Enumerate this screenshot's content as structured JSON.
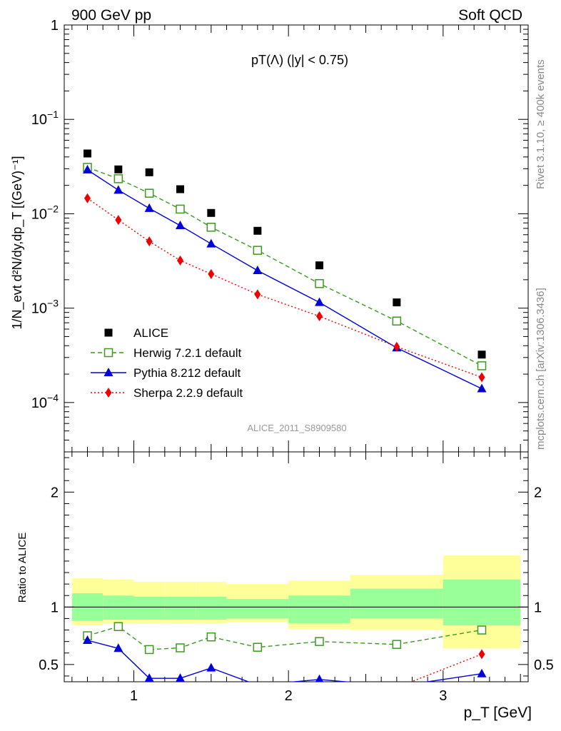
{
  "header": {
    "left": "900 GeV pp",
    "right": "Soft QCD",
    "plot_title": "pT(Λ) (|y| < 0.75)",
    "analysis_id": "ALICE_2011_S8909580"
  },
  "side_text": {
    "rivet": "Rivet 3.1.10, ≥ 400k events",
    "mcplots": "mcplots.cern.ch [arXiv:1306.3436]"
  },
  "chart_data": [
    {
      "type": "scatter",
      "panel": "main",
      "ylabel": "1/N_evt d²N/dy,dp_T [(GeV)⁻¹]",
      "yscale": "log",
      "ylim": [
        3e-05,
        1
      ],
      "xlim": [
        0.55,
        3.55
      ],
      "yticks": [
        "1",
        "10⁻¹",
        "10⁻²",
        "10⁻³",
        "10⁻⁴"
      ],
      "legend_position": "lower-left",
      "x": [
        0.7,
        0.9,
        1.1,
        1.3,
        1.5,
        1.8,
        2.2,
        2.7,
        3.25
      ],
      "series": [
        {
          "name": "ALICE",
          "style": "data",
          "color": "#000000",
          "values": [
            0.0435,
            0.0295,
            0.0275,
            0.0182,
            0.0102,
            0.0066,
            0.00284,
            0.00115,
            0.000322
          ]
        },
        {
          "name": "Herwig 7.2.1 default",
          "style": "dashed-open-square",
          "color": "#3a9a1e",
          "values": [
            0.031,
            0.0235,
            0.0165,
            0.0112,
            0.0072,
            0.0041,
            0.00182,
            0.00073,
            0.000245
          ]
        },
        {
          "name": "Pythia 8.212 default",
          "style": "solid-triangle",
          "color": "#0000dd",
          "values": [
            0.0292,
            0.0178,
            0.0114,
            0.0075,
            0.0048,
            0.0025,
            0.00115,
            0.00038,
            0.00014
          ]
        },
        {
          "name": "Sherpa 2.2.9 default",
          "style": "dotted-diamond",
          "color": "#ee0000",
          "values": [
            0.0146,
            0.0086,
            0.0051,
            0.0032,
            0.0023,
            0.0014,
            0.00082,
            0.00039,
            0.000185
          ]
        }
      ]
    },
    {
      "type": "line",
      "panel": "ratio",
      "ylabel": "Ratio to ALICE",
      "xlabel": "p_T [GeV]",
      "xlim": [
        0.55,
        3.55
      ],
      "ylim": [
        0.35,
        2.35
      ],
      "xticks": [
        "1",
        "2",
        "3"
      ],
      "yticks": [
        "0.5",
        "1",
        "2"
      ],
      "bin_edges": [
        0.6,
        0.8,
        1.0,
        1.2,
        1.4,
        1.6,
        2.0,
        2.4,
        3.0,
        3.5
      ],
      "band_inner": [
        [
          0.88,
          1.12
        ],
        [
          0.89,
          1.1
        ],
        [
          0.89,
          1.09
        ],
        [
          0.89,
          1.09
        ],
        [
          0.89,
          1.09
        ],
        [
          0.9,
          1.07
        ],
        [
          0.86,
          1.1
        ],
        [
          0.9,
          1.16
        ],
        [
          0.84,
          1.24
        ]
      ],
      "band_outer": [
        [
          0.84,
          1.25
        ],
        [
          0.86,
          1.24
        ],
        [
          0.86,
          1.22
        ],
        [
          0.86,
          1.22
        ],
        [
          0.86,
          1.22
        ],
        [
          0.87,
          1.2
        ],
        [
          0.81,
          1.23
        ],
        [
          0.8,
          1.28
        ],
        [
          0.64,
          1.45
        ]
      ],
      "x": [
        0.7,
        0.9,
        1.1,
        1.3,
        1.5,
        1.8,
        2.2,
        2.7,
        3.25
      ],
      "series": [
        {
          "name": "Herwig 7.2.1 default",
          "color": "#3a9a1e",
          "style": "dashed-open-square",
          "values": [
            0.75,
            0.83,
            0.63,
            0.645,
            0.74,
            0.65,
            0.7,
            0.675,
            0.8
          ]
        },
        {
          "name": "Pythia 8.212 default",
          "color": "#0000dd",
          "style": "solid-triangle",
          "values": [
            0.71,
            0.64,
            0.38,
            0.38,
            0.47,
            0.32,
            0.37,
            0.31,
            0.42
          ]
        },
        {
          "name": "Sherpa 2.2.9 default",
          "color": "#ee0000",
          "style": "dotted-diamond",
          "values": [
            null,
            null,
            null,
            null,
            null,
            null,
            null,
            0.3,
            0.59
          ]
        }
      ]
    }
  ]
}
